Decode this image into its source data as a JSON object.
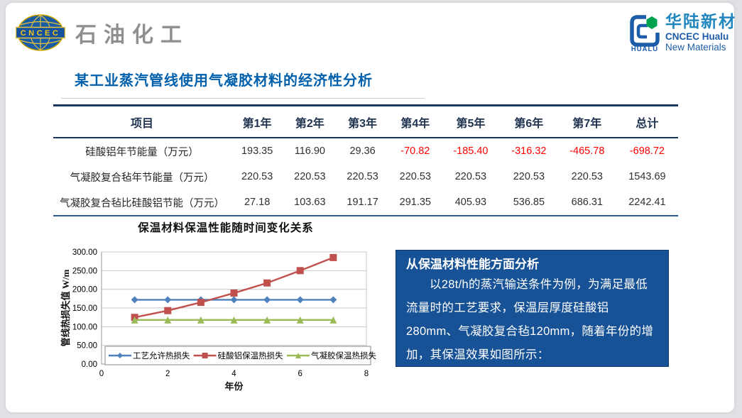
{
  "header": {
    "left_logo": {
      "org": "CNCEC",
      "text": "石油化工"
    },
    "right_logo": {
      "mark": "HUALU",
      "cn": "华陆新材",
      "en1": "CNCEC Hualu",
      "en2": "New Materials"
    }
  },
  "slide": {
    "title": "某工业蒸汽管线使用气凝胶材料的经济性分析"
  },
  "table": {
    "columns": [
      "项目",
      "第1年",
      "第2年",
      "第3年",
      "第4年",
      "第5年",
      "第6年",
      "第7年",
      "总计"
    ],
    "rows": [
      {
        "label": "硅酸铝年节能量（万元）",
        "values": [
          "193.35",
          "116.90",
          "29.36",
          "-70.82",
          "-185.40",
          "-316.32",
          "-465.78",
          "-698.72"
        ]
      },
      {
        "label": "气凝胶复合毡年节能量（万元）",
        "values": [
          "220.53",
          "220.53",
          "220.53",
          "220.53",
          "220.53",
          "220.53",
          "220.53",
          "1543.69"
        ]
      },
      {
        "label": "气凝胶复合毡比硅酸铝节能（万元）",
        "values": [
          "27.18",
          "103.63",
          "191.17",
          "291.35",
          "405.93",
          "536.85",
          "686.31",
          "2242.41"
        ]
      }
    ],
    "negative_color": "#ff0000"
  },
  "chart_data": {
    "type": "line",
    "title": "保温材料保温性能随时间变化关系",
    "xlabel": "年份",
    "ylabel": "管线热损失值 W/m",
    "x": [
      1,
      2,
      3,
      4,
      5,
      6,
      7
    ],
    "series": [
      {
        "name": "工艺允许热损失",
        "color": "#4f81bd",
        "marker": "diamond",
        "values": [
          172,
          172,
          172,
          172,
          172,
          172,
          172
        ]
      },
      {
        "name": "硅酸铝保温热损失",
        "color": "#c0504d",
        "marker": "square",
        "values": [
          125,
          143,
          165,
          190,
          217,
          250,
          285
        ]
      },
      {
        "name": "气凝胶保温热损失",
        "color": "#9bbb59",
        "marker": "triangle",
        "values": [
          118,
          118,
          118,
          118,
          118,
          118,
          118
        ]
      }
    ],
    "xlim": [
      0,
      8
    ],
    "ylim": [
      0,
      300
    ],
    "x_ticks": [
      0,
      2,
      4,
      6,
      8
    ],
    "y_ticks": [
      "0.00",
      "50.00",
      "100.00",
      "150.00",
      "200.00",
      "250.00",
      "300.00"
    ],
    "grid": true,
    "legend_position": "bottom-inside"
  },
  "info_box": {
    "heading": "从保温材料性能方面分析",
    "body": "以28t/h的蒸汽输送条件为例，为满足最低流量时的工艺要求，保温层厚度硅酸铝280mm、气凝胶复合毡120mm，随着年份的增加，其保温效果如图所示：",
    "bg_color": "#175296"
  }
}
